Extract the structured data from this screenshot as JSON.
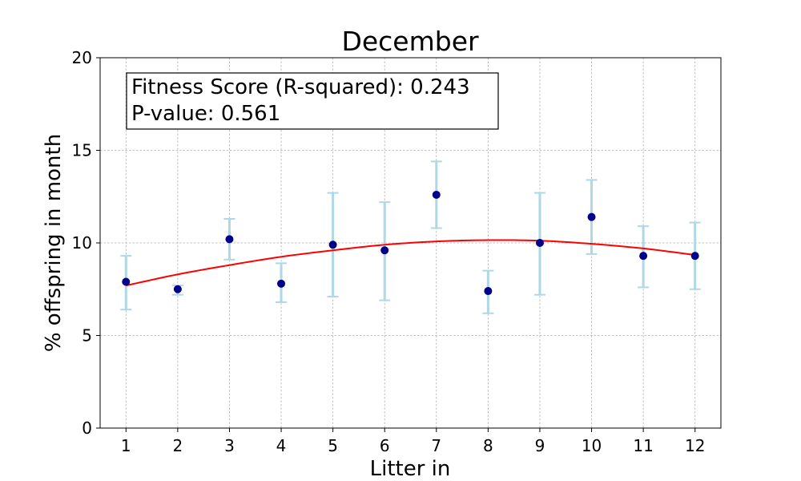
{
  "chart_data": {
    "type": "scatter",
    "title": "December",
    "xlabel": "Litter in",
    "ylabel": "% offspring in month",
    "x": [
      1,
      2,
      3,
      4,
      5,
      6,
      7,
      8,
      9,
      10,
      11,
      12
    ],
    "xlim": [
      0.5,
      12.5
    ],
    "ylim": [
      0,
      20
    ],
    "yticks": [
      0,
      5,
      10,
      15,
      20
    ],
    "grid": true,
    "series": [
      {
        "kind": "points_with_error_bars",
        "values": [
          7.9,
          7.5,
          10.2,
          7.8,
          9.9,
          9.6,
          12.6,
          7.4,
          10.0,
          11.4,
          9.3,
          9.3
        ],
        "err_lower": [
          6.4,
          7.2,
          9.1,
          6.8,
          7.1,
          6.9,
          10.8,
          6.2,
          7.2,
          9.4,
          7.6,
          7.5
        ],
        "err_upper": [
          9.3,
          7.7,
          11.3,
          8.9,
          12.7,
          12.2,
          14.4,
          8.5,
          12.7,
          13.4,
          10.9,
          11.1
        ],
        "marker_color": "#00008b",
        "errorbar_color": "#add8e6"
      },
      {
        "kind": "fit_curve",
        "color": "#ff0000",
        "x": [
          1,
          2,
          3,
          4,
          5,
          6,
          7,
          8,
          9,
          10,
          11,
          12
        ],
        "values": [
          7.7,
          8.3,
          8.8,
          9.25,
          9.6,
          9.9,
          10.08,
          10.15,
          10.12,
          9.95,
          9.7,
          9.35
        ]
      }
    ],
    "annotation": {
      "location": "top-left",
      "line1": "Fitness Score (R-squared): 0.243",
      "line2": "P-value: 0.561"
    }
  }
}
